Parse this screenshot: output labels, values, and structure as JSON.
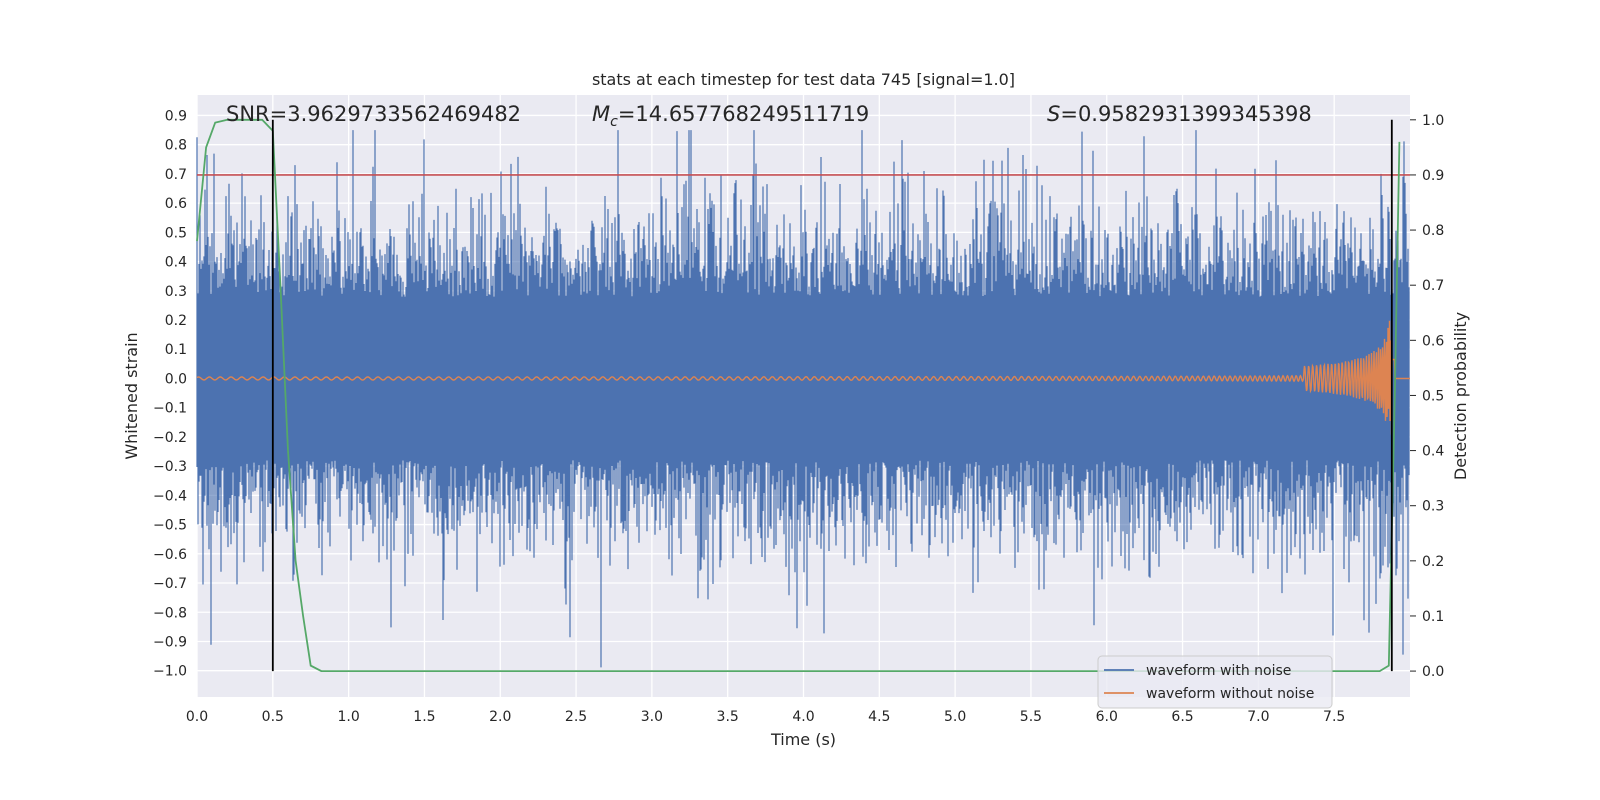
{
  "chart_data": {
    "type": "line",
    "title": "stats at each timestep for test data 745 [signal=1.0]",
    "xlabel": "Time (s)",
    "ylabel": "Whitened strain",
    "ylabel_right": "Detection probability",
    "xlim": [
      0.0,
      8.0
    ],
    "ylim": [
      -1.09,
      0.97
    ],
    "ylim_right": [
      -0.047,
      1.045
    ],
    "x_ticks": [
      "0.0",
      "0.5",
      "1.0",
      "1.5",
      "2.0",
      "2.5",
      "3.0",
      "3.5",
      "4.0",
      "4.5",
      "5.0",
      "5.5",
      "6.0",
      "6.5",
      "7.0",
      "7.5"
    ],
    "y_ticks": [
      "0.9",
      "0.8",
      "0.7",
      "0.6",
      "0.5",
      "0.4",
      "0.3",
      "0.2",
      "0.1",
      "0.0",
      "−0.1",
      "−0.2",
      "−0.3",
      "−0.4",
      "−0.5",
      "−0.6",
      "−0.7",
      "−0.8",
      "−0.9",
      "−1.0"
    ],
    "y_right_ticks": [
      "1.0",
      "0.9",
      "0.8",
      "0.7",
      "0.6",
      "0.5",
      "0.4",
      "0.3",
      "0.2",
      "0.1",
      "0.0"
    ],
    "grid": true,
    "annotations": {
      "snr": "SNR=3.962973356246948​2",
      "mc": "=14.657768249511719",
      "mc_symbol": "M",
      "mc_sub": "c",
      "s": "=0.9582931399345398",
      "s_symbol": "S"
    },
    "threshold_line": {
      "y_right": 0.9,
      "color": "#c44e52"
    },
    "vertical_lines": [
      0.5,
      7.88
    ],
    "series": [
      {
        "name": "waveform with noise",
        "color": "#4c72b0",
        "envelope_typical": [
          -0.45,
          0.45
        ],
        "peaks": [
          0.85,
          -1.0
        ]
      },
      {
        "name": "waveform without noise",
        "color": "#dd8452",
        "amplitude_start": 0.005,
        "amplitude_end": 0.2
      },
      {
        "color": "#55a868",
        "axis": "right",
        "x": [
          0.0,
          0.06,
          0.12,
          0.2,
          0.3,
          0.43,
          0.5,
          0.55,
          0.6,
          0.65,
          0.7,
          0.75,
          0.82,
          1.0,
          7.8,
          7.86,
          7.9,
          7.93
        ],
        "y": [
          0.78,
          0.95,
          0.995,
          1.0,
          1.0,
          1.0,
          0.98,
          0.7,
          0.4,
          0.2,
          0.1,
          0.01,
          0.0,
          0.0,
          0.0,
          0.01,
          0.5,
          0.96
        ]
      }
    ],
    "legend": {
      "placement": "lower-right",
      "entries": [
        "waveform with noise",
        "waveform without noise"
      ]
    },
    "colors": {
      "background": "#eaeaf2",
      "grid": "#ffffff",
      "noisy": "#4c72b0",
      "clean": "#dd8452",
      "probability": "#55a868",
      "threshold": "#c44e52",
      "marker": "#000000"
    }
  }
}
